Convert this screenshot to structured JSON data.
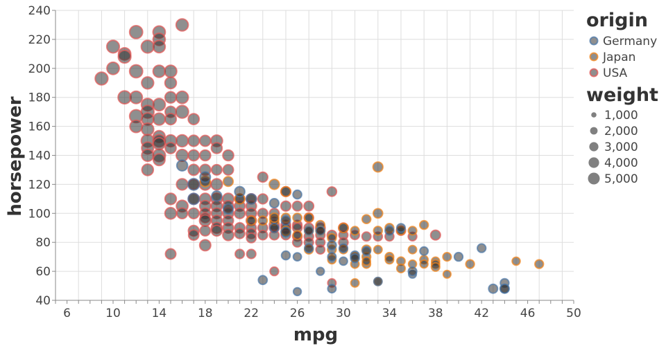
{
  "chart_data": {
    "type": "scatter",
    "title": "",
    "xlabel": "mpg",
    "ylabel": "horsepower",
    "xlim": [
      5,
      50
    ],
    "ylim": [
      40,
      240
    ],
    "x_ticks": [
      6,
      10,
      14,
      18,
      22,
      26,
      30,
      34,
      38,
      42,
      46,
      50
    ],
    "y_ticks": [
      40,
      60,
      80,
      100,
      120,
      140,
      160,
      180,
      200,
      220,
      240
    ],
    "grid": true,
    "legend_placement": "right",
    "color_legend": {
      "title": "origin",
      "entries": [
        {
          "label": "Germany",
          "color": "#4c78a8"
        },
        {
          "label": "Japan",
          "color": "#f58518"
        },
        {
          "label": "USA",
          "color": "#e45756"
        }
      ]
    },
    "size_legend": {
      "title": "weight",
      "entries": [
        {
          "label": "1,000",
          "value": 1000
        },
        {
          "label": "2,000",
          "value": 2000
        },
        {
          "label": "3,000",
          "value": 3000
        },
        {
          "label": "4,000",
          "value": 4000
        },
        {
          "label": "5,000",
          "value": 5000
        }
      ]
    },
    "fill_color": "#333333",
    "series": [
      {
        "name": "USA",
        "color": "#e45756",
        "points": [
          [
            9,
            193,
            4732
          ],
          [
            10,
            215,
            4615
          ],
          [
            10,
            200,
            4376
          ],
          [
            11,
            210,
            4382
          ],
          [
            11,
            208,
            4633
          ],
          [
            11,
            180,
            4955
          ],
          [
            12,
            225,
            4951
          ],
          [
            12,
            198,
            4952
          ],
          [
            12,
            180,
            4499
          ],
          [
            12,
            167,
            4906
          ],
          [
            12,
            160,
            4456
          ],
          [
            13,
            215,
            4735
          ],
          [
            13,
            190,
            4257
          ],
          [
            13,
            175,
            4464
          ],
          [
            13,
            170,
            4735
          ],
          [
            13,
            165,
            4274
          ],
          [
            13,
            158,
            4325
          ],
          [
            13,
            150,
            4699
          ],
          [
            13,
            145,
            4082
          ],
          [
            13,
            140,
            4129
          ],
          [
            13,
            130,
            3870
          ],
          [
            14,
            225,
            4425
          ],
          [
            14,
            220,
            4354
          ],
          [
            14,
            215,
            4312
          ],
          [
            14,
            198,
            4341
          ],
          [
            14,
            175,
            4385
          ],
          [
            14,
            165,
            4209
          ],
          [
            14,
            153,
            4154
          ],
          [
            14,
            150,
            4457
          ],
          [
            14,
            148,
            4098
          ],
          [
            14,
            140,
            4638
          ],
          [
            14,
            137,
            4042
          ],
          [
            15,
            198,
            4341
          ],
          [
            15,
            190,
            3850
          ],
          [
            15,
            180,
            3700
          ],
          [
            15,
            170,
            3563
          ],
          [
            15,
            165,
            3693
          ],
          [
            15,
            150,
            4096
          ],
          [
            15,
            145,
            3440
          ],
          [
            15,
            110,
            3730
          ],
          [
            15,
            100,
            3880
          ],
          [
            15,
            72,
            3158
          ],
          [
            16,
            230,
            4278
          ],
          [
            16,
            180,
            4380
          ],
          [
            16,
            170,
            4668
          ],
          [
            16,
            150,
            4190
          ],
          [
            16,
            140,
            4141
          ],
          [
            16,
            120,
            3730
          ],
          [
            16,
            105,
            3897
          ],
          [
            16,
            100,
            3278
          ],
          [
            17,
            165,
            3445
          ],
          [
            17,
            150,
            3672
          ],
          [
            17,
            140,
            3449
          ],
          [
            17,
            130,
            3504
          ],
          [
            17,
            120,
            3070
          ],
          [
            17,
            110,
            3365
          ],
          [
            17,
            100,
            3329
          ],
          [
            17,
            88,
            3302
          ],
          [
            17,
            85,
            3021
          ],
          [
            18,
            150,
            3440
          ],
          [
            18,
            140,
            3431
          ],
          [
            18,
            130,
            3504
          ],
          [
            18,
            120,
            3820
          ],
          [
            18,
            110,
            3645
          ],
          [
            18,
            105,
            3459
          ],
          [
            18,
            100,
            3282
          ],
          [
            18,
            97,
            2774
          ],
          [
            18,
            95,
            3785
          ],
          [
            18,
            88,
            3139
          ],
          [
            18,
            78,
            3574
          ],
          [
            19,
            150,
            3940
          ],
          [
            19,
            145,
            3425
          ],
          [
            19,
            130,
            3102
          ],
          [
            19,
            120,
            3735
          ],
          [
            19,
            110,
            3620
          ],
          [
            19,
            105,
            3535
          ],
          [
            19,
            100,
            3264
          ],
          [
            19,
            95,
            3282
          ],
          [
            19,
            90,
            3381
          ],
          [
            19,
            88,
            3302
          ],
          [
            20,
            140,
            3380
          ],
          [
            20,
            130,
            3150
          ],
          [
            20,
            110,
            3620
          ],
          [
            20,
            105,
            3353
          ],
          [
            20,
            100,
            3430
          ],
          [
            20,
            95,
            3155
          ],
          [
            20,
            90,
            3211
          ],
          [
            20,
            85,
            3465
          ],
          [
            21,
            110,
            2807
          ],
          [
            21,
            105,
            3180
          ],
          [
            21,
            100,
            3200
          ],
          [
            21,
            90,
            3085
          ],
          [
            21,
            86,
            2901
          ],
          [
            21,
            72,
            2401
          ],
          [
            22,
            110,
            3060
          ],
          [
            22,
            105,
            3150
          ],
          [
            22,
            100,
            3233
          ],
          [
            22,
            95,
            2945
          ],
          [
            22,
            90,
            2870
          ],
          [
            22,
            86,
            2865
          ],
          [
            22,
            83,
            2640
          ],
          [
            22,
            72,
            2408
          ],
          [
            23,
            125,
            2900
          ],
          [
            23,
            110,
            2905
          ],
          [
            23,
            100,
            2789
          ],
          [
            23,
            90,
            2735
          ],
          [
            23,
            85,
            2587
          ],
          [
            24,
            100,
            2720
          ],
          [
            24,
            92,
            2865
          ],
          [
            24,
            90,
            2670
          ],
          [
            24,
            85,
            2615
          ],
          [
            24,
            60,
            2164
          ],
          [
            25,
            115,
            2795
          ],
          [
            25,
            105,
            2890
          ],
          [
            25,
            92,
            2625
          ],
          [
            25,
            90,
            2711
          ],
          [
            25,
            85,
            2500
          ],
          [
            26,
            105,
            2725
          ],
          [
            26,
            92,
            2500
          ],
          [
            26,
            90,
            2588
          ],
          [
            26,
            84,
            2510
          ],
          [
            26,
            80,
            2488
          ],
          [
            27,
            105,
            2720
          ],
          [
            27,
            97,
            2600
          ],
          [
            27,
            90,
            2670
          ],
          [
            27,
            84,
            2490
          ],
          [
            27,
            80,
            2400
          ],
          [
            28,
            90,
            2670
          ],
          [
            28,
            85,
            2400
          ],
          [
            28,
            80,
            2451
          ],
          [
            28,
            75,
            2305
          ],
          [
            29,
            115,
            2595
          ],
          [
            29,
            85,
            2605
          ],
          [
            29,
            52,
            2035
          ],
          [
            30,
            90,
            2735
          ],
          [
            30,
            85,
            2380
          ],
          [
            30,
            80,
            2500
          ],
          [
            31,
            85,
            2370
          ],
          [
            32,
            84,
            2370
          ],
          [
            33,
            84,
            2295
          ],
          [
            34,
            84,
            2295
          ],
          [
            35,
            88,
            2460
          ],
          [
            36,
            84,
            2160
          ],
          [
            38,
            85,
            2800
          ]
        ]
      },
      {
        "name": "Japan",
        "color": "#f58518",
        "points": [
          [
            18,
            122,
            2945
          ],
          [
            20,
            122,
            2807
          ],
          [
            21,
            110,
            2807
          ],
          [
            22,
            95,
            2264
          ],
          [
            23,
            95,
            2300
          ],
          [
            24,
            120,
            2930
          ],
          [
            24,
            95,
            2372
          ],
          [
            24,
            97,
            2375
          ],
          [
            25,
            115,
            2720
          ],
          [
            25,
            97,
            2300
          ],
          [
            25,
            88,
            2290
          ],
          [
            26,
            97,
            2310
          ],
          [
            26,
            85,
            2130
          ],
          [
            27,
            97,
            2130
          ],
          [
            27,
            88,
            2210
          ],
          [
            27,
            75,
            2230
          ],
          [
            28,
            92,
            2288
          ],
          [
            28,
            88,
            2372
          ],
          [
            29,
            83,
            2110
          ],
          [
            29,
            75,
            2171
          ],
          [
            29,
            68,
            2000
          ],
          [
            30,
            90,
            2465
          ],
          [
            30,
            75,
            2003
          ],
          [
            31,
            88,
            2050
          ],
          [
            31,
            65,
            1975
          ],
          [
            31,
            70,
            1950
          ],
          [
            31,
            52,
            1985
          ],
          [
            32,
            96,
            2200
          ],
          [
            32,
            75,
            2380
          ],
          [
            32,
            65,
            1985
          ],
          [
            32,
            70,
            2120
          ],
          [
            32,
            67,
            1965
          ],
          [
            33,
            132,
            2910
          ],
          [
            33,
            100,
            2556
          ],
          [
            33,
            88,
            2202
          ],
          [
            33,
            75,
            1990
          ],
          [
            33,
            53,
            1795
          ],
          [
            34,
            90,
            2180
          ],
          [
            34,
            70,
            2160
          ],
          [
            34,
            68,
            2070
          ],
          [
            35,
            88,
            1965
          ],
          [
            35,
            67,
            1995
          ],
          [
            35,
            62,
            2050
          ],
          [
            36,
            88,
            2100
          ],
          [
            36,
            75,
            2010
          ],
          [
            36,
            65,
            1860
          ],
          [
            37,
            92,
            2130
          ],
          [
            37,
            68,
            2025
          ],
          [
            37,
            65,
            1800
          ],
          [
            38,
            67,
            1965
          ],
          [
            38,
            65,
            1975
          ],
          [
            38,
            63,
            2050
          ],
          [
            39,
            70,
            2050
          ],
          [
            39,
            58,
            1755
          ],
          [
            41,
            65,
            2150
          ],
          [
            45,
            67,
            1850
          ],
          [
            47,
            65,
            2110
          ]
        ]
      },
      {
        "name": "Germany",
        "color": "#4c78a8",
        "points": [
          [
            16,
            133,
            3410
          ],
          [
            17,
            120,
            3820
          ],
          [
            17,
            110,
            3570
          ],
          [
            18,
            125,
            3140
          ],
          [
            19,
            112,
            2868
          ],
          [
            20,
            103,
            2830
          ],
          [
            21,
            115,
            2975
          ],
          [
            22,
            110,
            2962
          ],
          [
            23,
            54,
            2254
          ],
          [
            24,
            107,
            2430
          ],
          [
            24,
            90,
            2302
          ],
          [
            25,
            95,
            2375
          ],
          [
            25,
            71,
            2223
          ],
          [
            25,
            87,
            2672
          ],
          [
            26,
            113,
            2234
          ],
          [
            26,
            70,
            1937
          ],
          [
            26,
            46,
            1835
          ],
          [
            27,
            88,
            2130
          ],
          [
            27,
            76,
            2144
          ],
          [
            28,
            88,
            2245
          ],
          [
            28,
            60,
            1800
          ],
          [
            29,
            78,
            2188
          ],
          [
            29,
            70,
            1990
          ],
          [
            29,
            48,
            1985
          ],
          [
            30,
            67,
            1950
          ],
          [
            30,
            76,
            2065
          ],
          [
            31,
            71,
            2190
          ],
          [
            31,
            69,
            2130
          ],
          [
            32,
            74,
            1980
          ],
          [
            33,
            53,
            1990
          ],
          [
            34,
            88,
            2190
          ],
          [
            35,
            90,
            2085
          ],
          [
            36,
            58,
            1755
          ],
          [
            36,
            60,
            2045
          ],
          [
            37,
            74,
            2035
          ],
          [
            40,
            70,
            2110
          ],
          [
            42,
            76,
            2144
          ],
          [
            43,
            48,
            2335
          ],
          [
            44,
            52,
            2130
          ],
          [
            44,
            48,
            2085
          ],
          [
            44,
            48,
            2335
          ]
        ]
      }
    ]
  }
}
